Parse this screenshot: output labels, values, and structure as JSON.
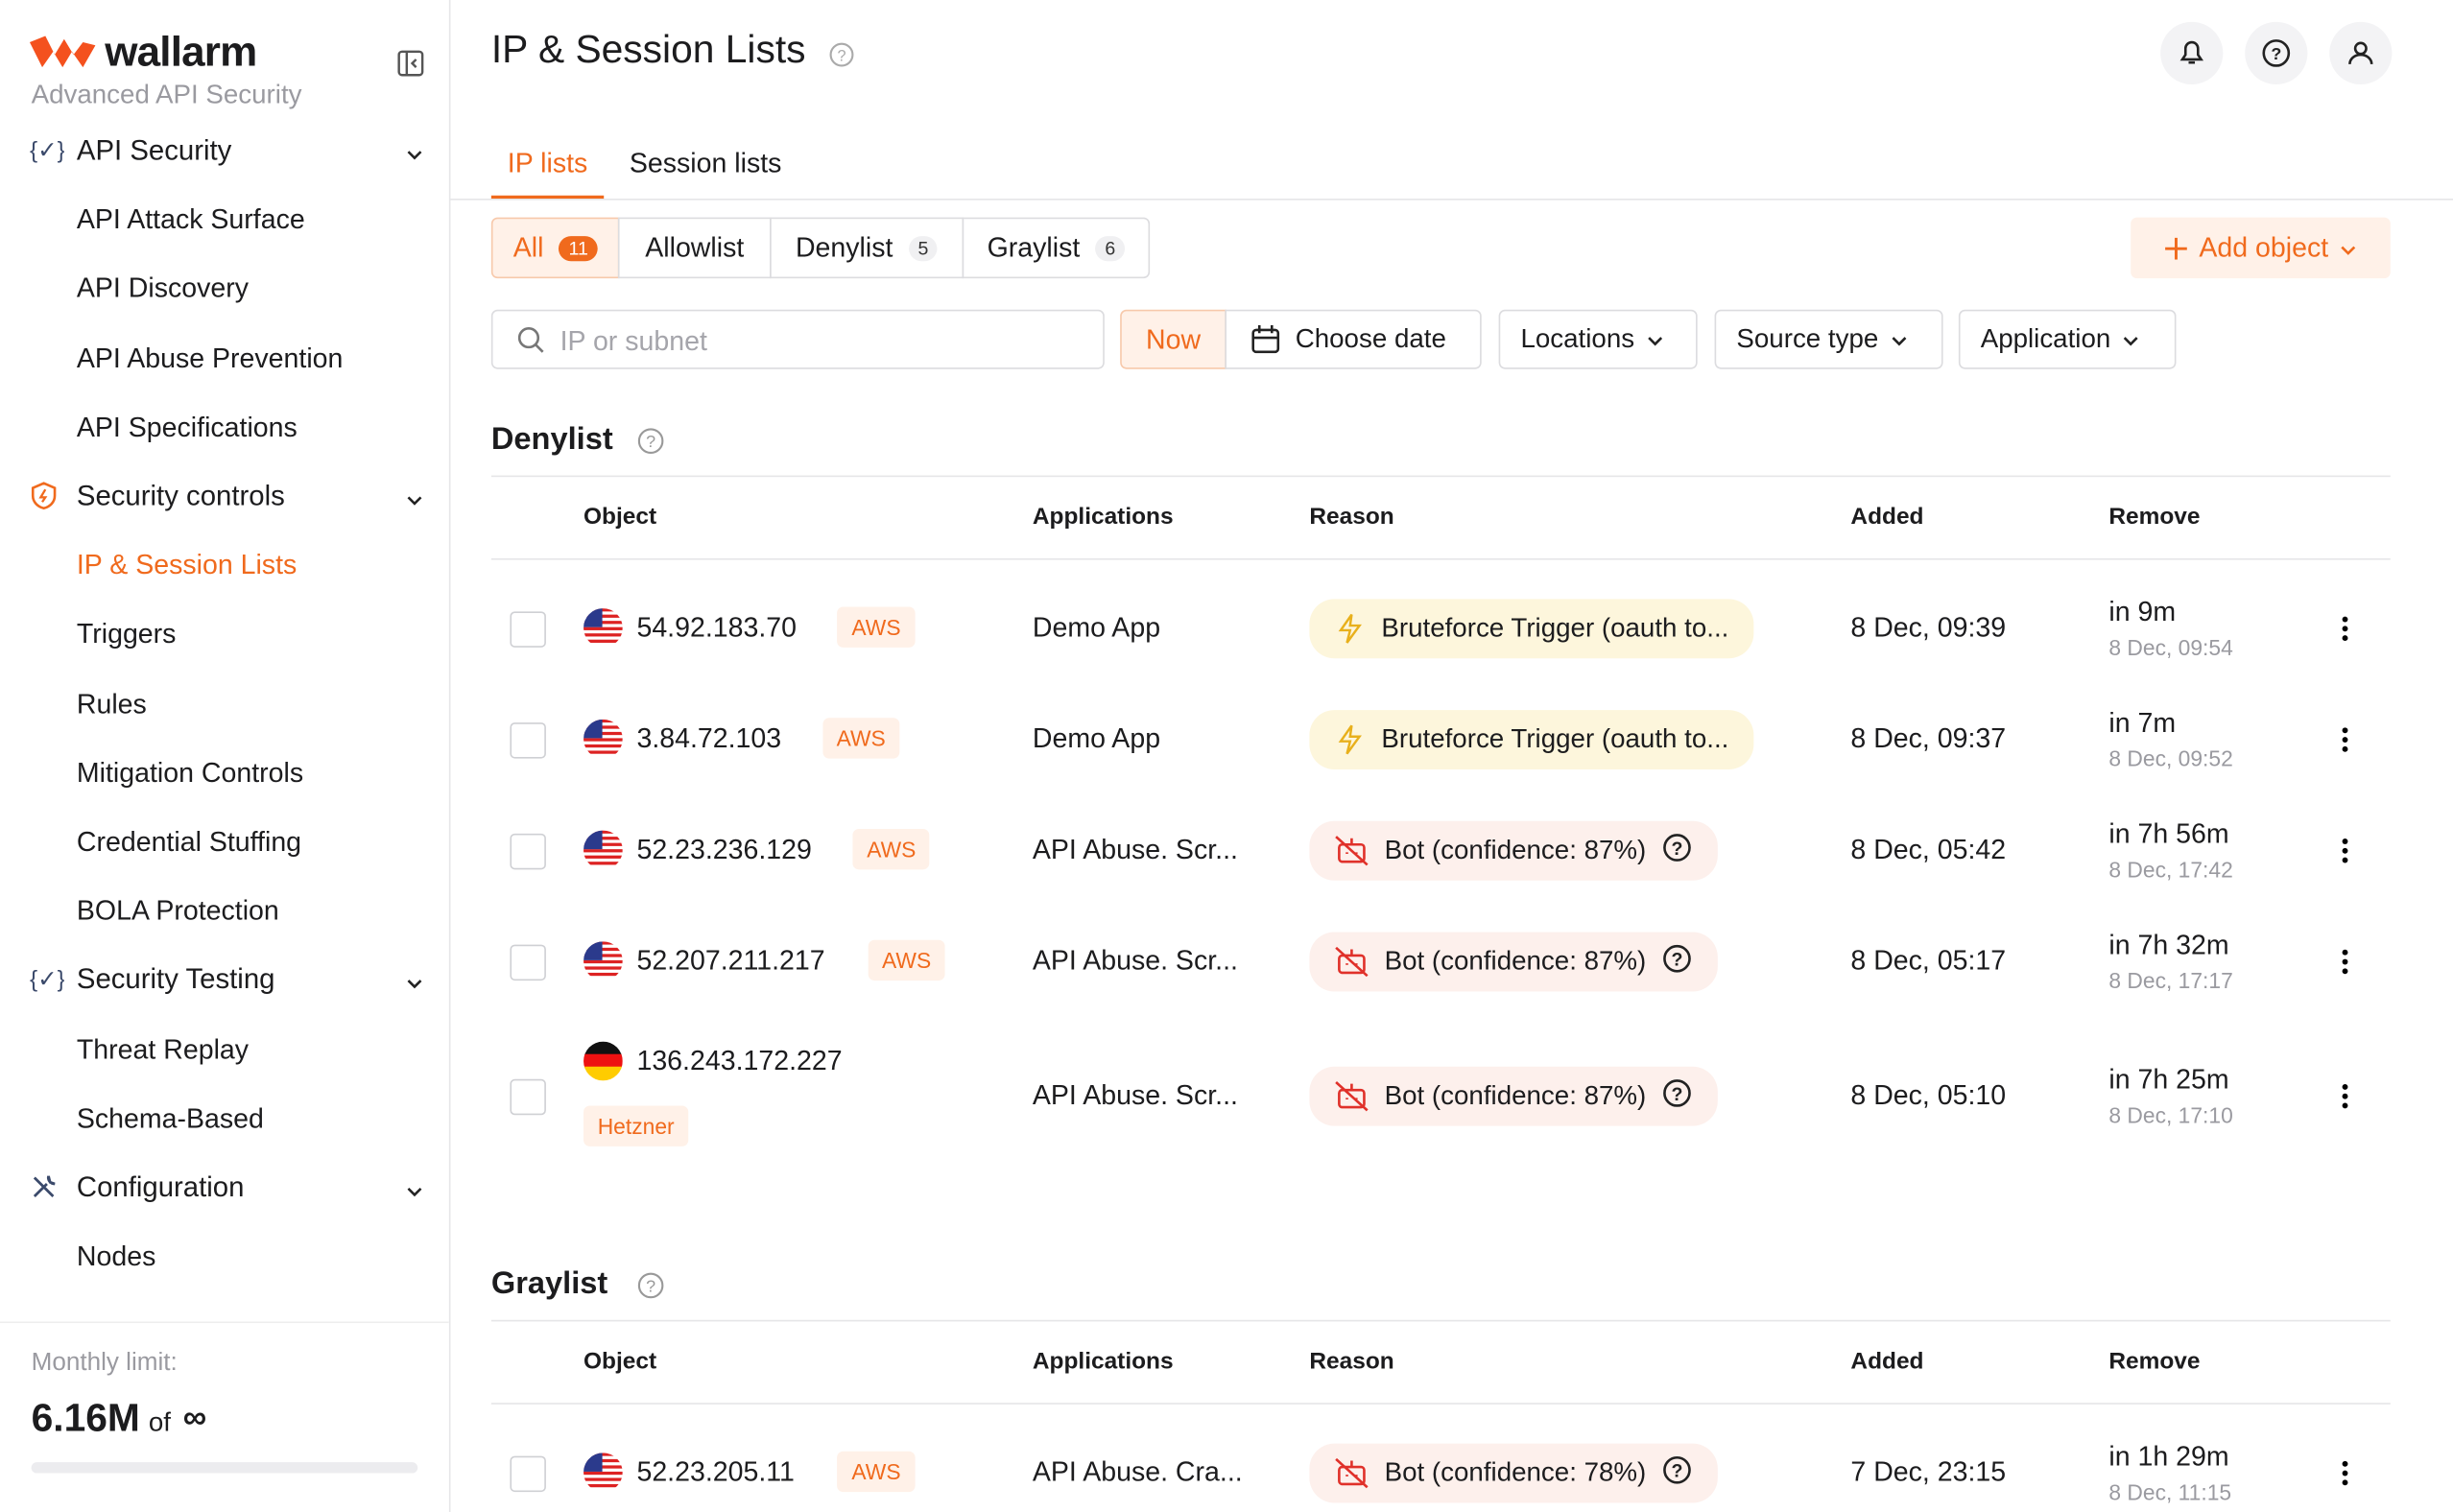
{
  "sidebar": {
    "brand": "wallarm",
    "subtitle": "Advanced API Security",
    "sections": [
      {
        "label": "API Security",
        "items": [
          "API Attack Surface",
          "API Discovery",
          "API Abuse Prevention",
          "API Specifications"
        ]
      },
      {
        "label": "Security controls",
        "items": [
          "IP & Session Lists",
          "Triggers",
          "Rules",
          "Mitigation Controls",
          "Credential Stuffing",
          "BOLA Protection"
        ]
      },
      {
        "label": "Security Testing",
        "items": [
          "Threat Replay",
          "Schema-Based"
        ]
      },
      {
        "label": "Configuration",
        "items": [
          "Nodes"
        ]
      }
    ],
    "limit": {
      "label": "Monthly limit:",
      "value": "6.16M",
      "of": "of",
      "max": "∞"
    }
  },
  "header": {
    "title": "IP & Session Lists"
  },
  "tabs": [
    "IP lists",
    "Session lists"
  ],
  "filters": [
    {
      "label": "All",
      "count": "11"
    },
    {
      "label": "Allowlist"
    },
    {
      "label": "Denylist",
      "count": "5"
    },
    {
      "label": "Graylist",
      "count": "6"
    }
  ],
  "add_button": "Add object",
  "search_placeholder": "IP or subnet",
  "date": {
    "now": "Now",
    "choose": "Choose date"
  },
  "dropdowns": [
    "Locations",
    "Source type",
    "Application"
  ],
  "lists": [
    {
      "title": "Denylist",
      "columns": [
        "Object",
        "Applications",
        "Reason",
        "Added",
        "Remove"
      ],
      "rows": [
        {
          "ip": "54.92.183.70",
          "provider": "AWS",
          "app": "Demo App",
          "reason": "Bruteforce Trigger (oauth to...",
          "added": "8 Dec, 09:39",
          "remove": "in 9m",
          "remove_at": "8 Dec, 09:54"
        },
        {
          "ip": "3.84.72.103",
          "provider": "AWS",
          "app": "Demo App",
          "reason": "Bruteforce Trigger (oauth to...",
          "added": "8 Dec, 09:37",
          "remove": "in 7m",
          "remove_at": "8 Dec, 09:52"
        },
        {
          "ip": "52.23.236.129",
          "provider": "AWS",
          "app": "API Abuse. Scr...",
          "reason": "Bot (confidence: 87%)",
          "added": "8 Dec, 05:42",
          "remove": "in 7h 56m",
          "remove_at": "8 Dec, 17:42"
        },
        {
          "ip": "52.207.211.217",
          "provider": "AWS",
          "app": "API Abuse. Scr...",
          "reason": "Bot (confidence: 87%)",
          "added": "8 Dec, 05:17",
          "remove": "in 7h 32m",
          "remove_at": "8 Dec, 17:17"
        },
        {
          "ip": "136.243.172.227",
          "provider": "Hetzner",
          "app": "API Abuse. Scr...",
          "reason": "Bot (confidence: 87%)",
          "added": "8 Dec, 05:10",
          "remove": "in 7h 25m",
          "remove_at": "8 Dec, 17:10"
        }
      ]
    },
    {
      "title": "Graylist",
      "columns": [
        "Object",
        "Applications",
        "Reason",
        "Added",
        "Remove"
      ],
      "rows": [
        {
          "ip": "52.23.205.11",
          "provider": "AWS",
          "app": "API Abuse. Cra...",
          "reason": "Bot (confidence: 78%)",
          "added": "7 Dec, 23:15",
          "remove": "in 1h 29m",
          "remove_at": "8 Dec, 11:15"
        }
      ]
    }
  ]
}
